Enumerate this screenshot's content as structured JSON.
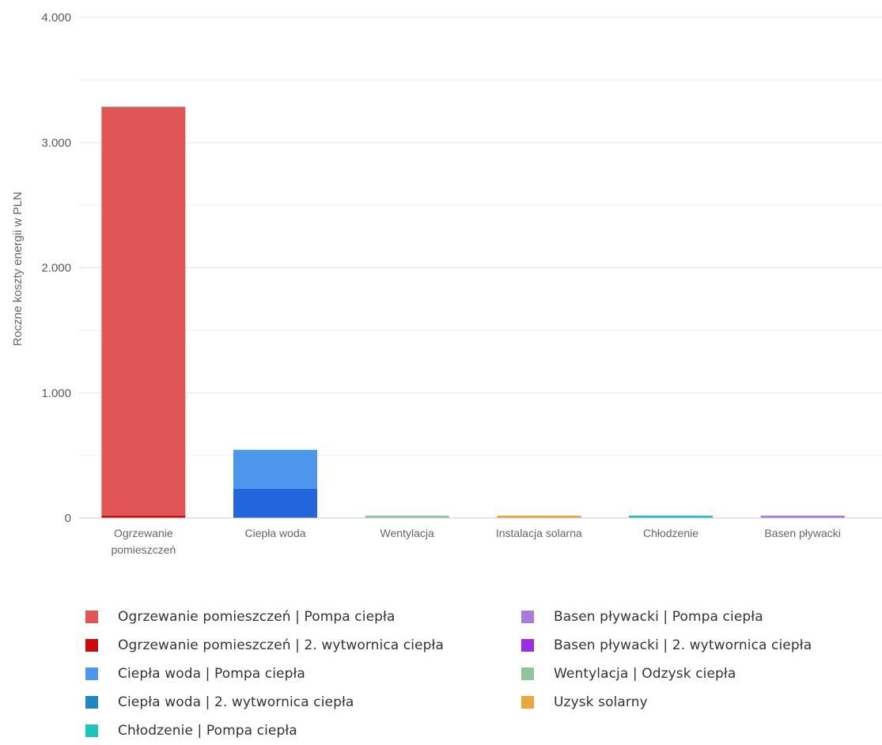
{
  "chart_data": {
    "type": "bar",
    "stacked": true,
    "ylabel": "Roczne koszty energii w PLN",
    "xlabel": "",
    "ylim": [
      0,
      4000
    ],
    "yticks": [
      0,
      1000,
      2000,
      3000,
      4000
    ],
    "ytick_labels": [
      "0",
      "1.000",
      "2.000",
      "3.000",
      "4.000"
    ],
    "grid": true,
    "legend_position": "bottom",
    "categories": [
      [
        "Ogrzewanie",
        "pomieszczeń"
      ],
      [
        "Ciepła woda"
      ],
      [
        "Wentylacja"
      ],
      [
        "Instalacja solarna"
      ],
      [
        "Chłodzenie"
      ],
      [
        "Basen pływacki"
      ]
    ],
    "series": [
      {
        "name": "Ogrzewanie pomieszczeń | 2. wytwornica ciepła",
        "color": "#cc0a0a",
        "values": [
          20,
          0,
          0,
          0,
          0,
          0
        ]
      },
      {
        "name": "Ogrzewanie pomieszczeń | Pompa ciepła",
        "color": "#e05555",
        "values": [
          3265,
          0,
          0,
          0,
          0,
          0
        ]
      },
      {
        "name": "Ciepła woda | 2. wytwornica ciepła",
        "color": "#2266dd",
        "values": [
          0,
          235,
          0,
          0,
          0,
          0
        ]
      },
      {
        "name": "Ciepła woda | Pompa ciepła",
        "color": "#4c96ec",
        "values": [
          0,
          310,
          0,
          0,
          0,
          0
        ]
      },
      {
        "name": "Wentylacja | Odzysk ciepła",
        "color": "#8cc69a",
        "values": [
          0,
          0,
          12,
          0,
          0,
          0
        ]
      },
      {
        "name": "Uzysk solarny",
        "color": "#e8a93a",
        "values": [
          0,
          0,
          0,
          12,
          0,
          0
        ]
      },
      {
        "name": "Chłodzenie | Pompa ciepła",
        "color": "#1ec4ba",
        "values": [
          0,
          0,
          0,
          0,
          12,
          0
        ]
      },
      {
        "name": "Basen pływacki | Pompa ciepła",
        "color": "#a77ae0",
        "values": [
          0,
          0,
          0,
          0,
          0,
          12
        ]
      }
    ]
  },
  "legend": {
    "left": [
      {
        "label": "Ogrzewanie pomieszczeń | Pompa ciepła",
        "color": "#e05555"
      },
      {
        "label": "Ogrzewanie pomieszczeń | 2. wytwornica ciepła",
        "color": "#cc0a0a"
      },
      {
        "label": "Ciepła woda | Pompa ciepła",
        "color": "#4c96ec"
      },
      {
        "label": "Ciepła woda | 2. wytwornica ciepła",
        "color": "#1f86c2"
      },
      {
        "label": "Chłodzenie | Pompa ciepła",
        "color": "#1ec4ba"
      }
    ],
    "right": [
      {
        "label": "Basen pływacki | Pompa ciepła",
        "color": "#a77ae0"
      },
      {
        "label": "Basen pływacki | 2. wytwornica ciepła",
        "color": "#9b2de8"
      },
      {
        "label": "Wentylacja | Odzysk ciepła",
        "color": "#8cc69a"
      },
      {
        "label": "Uzysk solarny",
        "color": "#e8a93a"
      }
    ]
  }
}
